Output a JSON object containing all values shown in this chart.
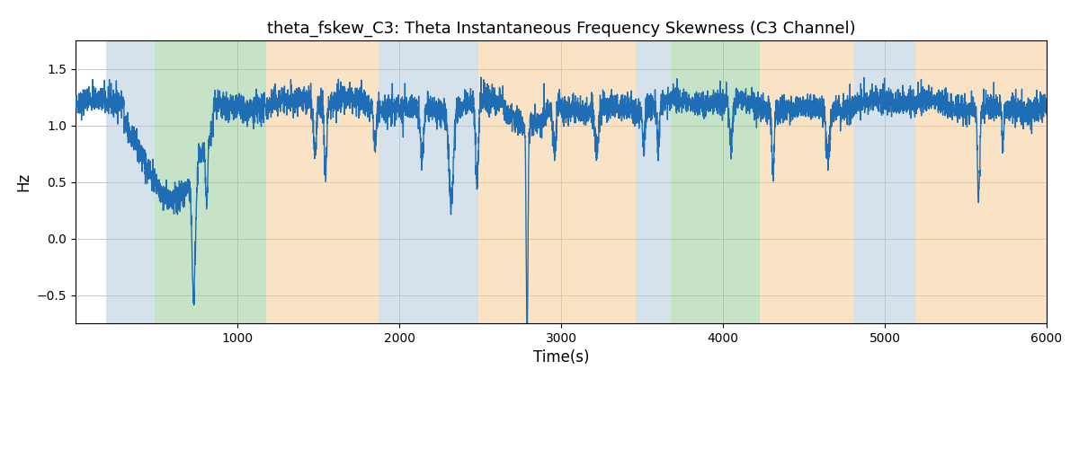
{
  "title": "theta_fskew_C3: Theta Instantaneous Frequency Skewness (C3 Channel)",
  "xlabel": "Time(s)",
  "ylabel": "Hz",
  "xlim": [
    0,
    6000
  ],
  "ylim": [
    -0.75,
    1.75
  ],
  "yticks": [
    -0.5,
    0.0,
    0.5,
    1.0,
    1.5
  ],
  "xticks": [
    1000,
    2000,
    3000,
    4000,
    5000,
    6000
  ],
  "line_color": "#1f6eb5",
  "line_width": 1.0,
  "background_color": "#ffffff",
  "grid_color": "#b0b0b0",
  "color_blue": "#aec6d8",
  "color_green": "#90c990",
  "color_orange": "#f5c88a",
  "alpha_bg": 0.5,
  "bg_regions": [
    {
      "start": 190,
      "end": 490,
      "color": "blue"
    },
    {
      "start": 490,
      "end": 1180,
      "color": "green"
    },
    {
      "start": 1180,
      "end": 1870,
      "color": "orange"
    },
    {
      "start": 1870,
      "end": 2490,
      "color": "blue"
    },
    {
      "start": 2490,
      "end": 3460,
      "color": "orange"
    },
    {
      "start": 3460,
      "end": 3680,
      "color": "blue"
    },
    {
      "start": 3680,
      "end": 4230,
      "color": "green"
    },
    {
      "start": 4230,
      "end": 4810,
      "color": "orange"
    },
    {
      "start": 4810,
      "end": 5190,
      "color": "blue"
    },
    {
      "start": 5190,
      "end": 6050,
      "color": "orange"
    }
  ],
  "seed": 42,
  "n_points": 6000,
  "signal_mean": 1.18,
  "noise_std": 0.055,
  "hf_noise_std": 0.03
}
